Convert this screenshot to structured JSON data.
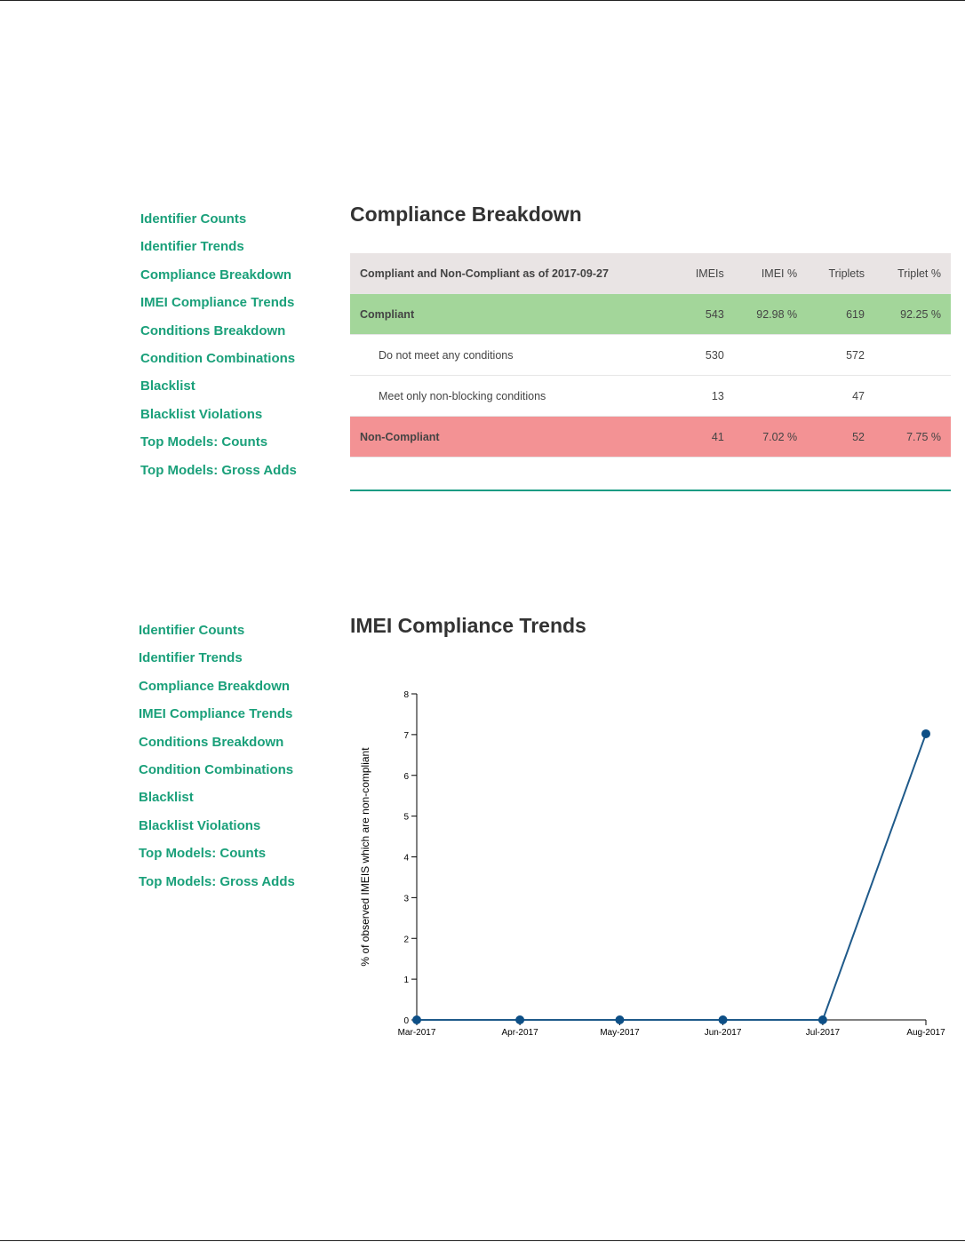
{
  "nav": [
    "Identifier Counts",
    "Identifier Trends",
    "Compliance Breakdown",
    "IMEI Compliance Trends",
    "Conditions Breakdown",
    "Condition Combinations",
    "Blacklist",
    "Blacklist Violations",
    "Top Models: Counts",
    "Top Models: Gross Adds"
  ],
  "section1": {
    "title": "Compliance Breakdown",
    "table": {
      "headers": [
        "Compliant and Non-Compliant as of 2017-09-27",
        "IMEIs",
        "IMEI %",
        "Triplets",
        "Triplet %"
      ],
      "rows": [
        [
          "Compliant",
          "543",
          "92.98 %",
          "619",
          "92.25 %"
        ],
        [
          "Do not meet any conditions",
          "530",
          "",
          "572",
          ""
        ],
        [
          "Meet only non-blocking conditions",
          "13",
          "",
          "47",
          ""
        ],
        [
          "Non-Compliant",
          "41",
          "7.02 %",
          "52",
          "7.75 %"
        ]
      ]
    },
    "colors": {
      "compliant": "#a3d69a",
      "non_compliant": "#f39294",
      "accent": "#1aa07a"
    }
  },
  "section2": {
    "title": "IMEI Compliance Trends"
  },
  "chart_data": {
    "type": "line",
    "title": "IMEI Compliance Trends",
    "xlabel": "",
    "ylabel": "% of observed IMEIS which are non-compliant",
    "x": [
      "2017-03-01",
      "2017-04-01",
      "2017-05-01",
      "2017-06-01",
      "2017-07-01",
      "2017-08-01"
    ],
    "xtick_labels": [
      "Mar-2017",
      "Apr-2017",
      "May-2017",
      "Jun-2017",
      "Jul-2017",
      "Aug-2017"
    ],
    "series": [
      {
        "name": "non-compliant %",
        "values": [
          0,
          0,
          0,
          0,
          0,
          7.02
        ],
        "color": "#1f5a8a"
      }
    ],
    "yticks": [
      0,
      1,
      2,
      3,
      4,
      5,
      6,
      7,
      8
    ],
    "ylim": [
      0,
      8
    ],
    "grid": false
  }
}
